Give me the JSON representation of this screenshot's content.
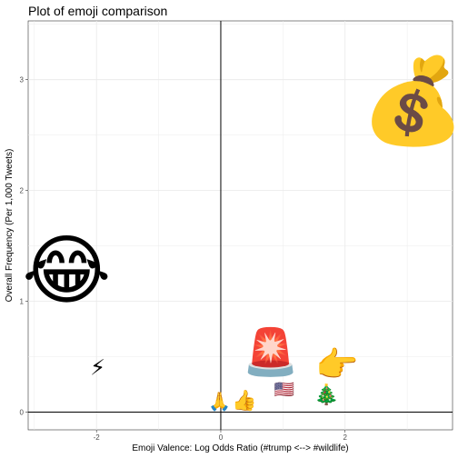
{
  "chart_data": {
    "type": "scatter",
    "title": "Plot of emoji comparison",
    "xlabel": "Emoji Valence: Log Odds Ratio (#trump <--> #wildlife)",
    "ylabel": "Overall Frequency (Per 1,000 Tweets)",
    "xlim": [
      -3.1,
      3.73
    ],
    "ylim": [
      -0.16,
      3.53
    ],
    "x_ticks": [
      -2,
      0,
      2
    ],
    "y_ticks": [
      0,
      1,
      2,
      3
    ],
    "grid": true,
    "reference_lines": {
      "x": 0,
      "y": 0
    },
    "points": [
      {
        "icon": "money-bag-emoji",
        "glyph": "💰",
        "x": 3.09,
        "y": 2.81,
        "size": 92
      },
      {
        "icon": "tears-of-joy-emoji",
        "glyph": "😂",
        "x": -2.48,
        "y": 1.28,
        "size": 84
      },
      {
        "icon": "siren-emoji",
        "glyph": "🚨",
        "x": 0.8,
        "y": 0.54,
        "size": 50
      },
      {
        "icon": "pointing-right-emoji",
        "glyph": "👉",
        "x": 1.87,
        "y": 0.43,
        "size": 38
      },
      {
        "icon": "lightning-emoji",
        "glyph": "⚡",
        "x": -1.98,
        "y": 0.4,
        "size": 24
      },
      {
        "icon": "us-flag-emoji",
        "glyph": "🇺🇸",
        "x": 1.02,
        "y": 0.2,
        "size": 18
      },
      {
        "icon": "christmas-tree-emoji",
        "glyph": "🎄",
        "x": 1.7,
        "y": 0.15,
        "size": 22
      },
      {
        "icon": "praying-hands-emoji",
        "glyph": "🙏",
        "x": -0.02,
        "y": 0.1,
        "size": 20
      },
      {
        "icon": "thumbs-up-emoji",
        "glyph": "👍",
        "x": 0.38,
        "y": 0.1,
        "size": 22
      }
    ]
  }
}
